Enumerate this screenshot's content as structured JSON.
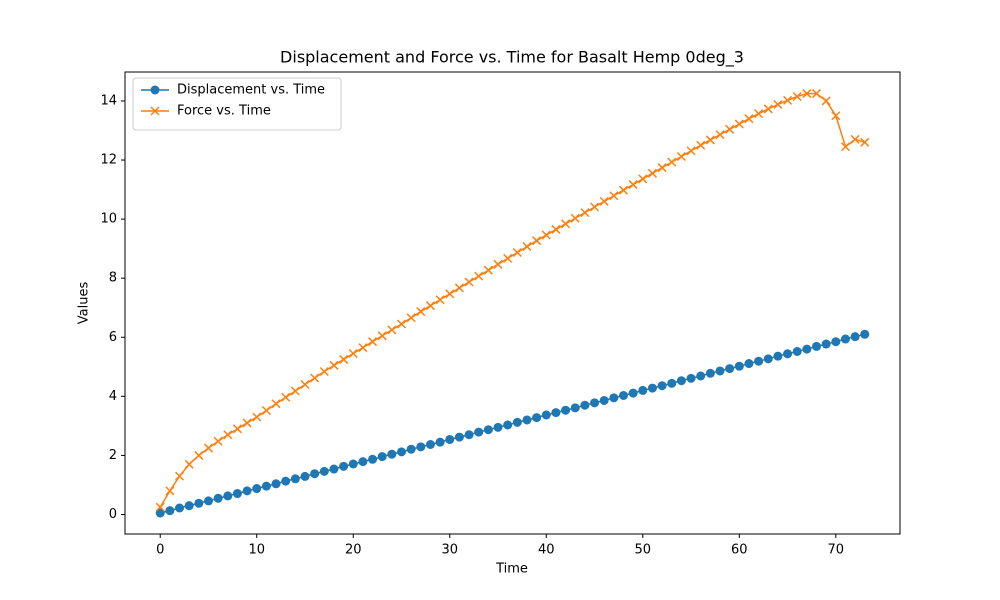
{
  "chart_data": {
    "type": "line",
    "title": "Displacement and Force vs. Time for Basalt Hemp 0deg_3",
    "x_label": "Time",
    "y_label": "Values",
    "x": [
      0,
      1,
      2,
      3,
      4,
      5,
      6,
      7,
      8,
      9,
      10,
      11,
      12,
      13,
      14,
      15,
      16,
      17,
      18,
      19,
      20,
      21,
      22,
      23,
      24,
      25,
      26,
      27,
      28,
      29,
      30,
      31,
      32,
      33,
      34,
      35,
      36,
      37,
      38,
      39,
      40,
      41,
      42,
      43,
      44,
      45,
      46,
      47,
      48,
      49,
      50,
      51,
      52,
      53,
      54,
      55,
      56,
      57,
      58,
      59,
      60,
      61,
      62,
      63,
      64,
      65,
      66,
      67,
      68,
      69,
      70,
      71,
      72,
      73
    ],
    "series": [
      {
        "name": "Displacement vs. Time",
        "color": "#1f77b4",
        "marker": "o",
        "values": [
          0.05,
          0.13,
          0.22,
          0.3,
          0.38,
          0.46,
          0.55,
          0.63,
          0.71,
          0.8,
          0.88,
          0.96,
          1.04,
          1.13,
          1.21,
          1.29,
          1.38,
          1.46,
          1.54,
          1.63,
          1.71,
          1.79,
          1.87,
          1.96,
          2.04,
          2.12,
          2.21,
          2.29,
          2.37,
          2.45,
          2.54,
          2.62,
          2.7,
          2.79,
          2.87,
          2.95,
          3.03,
          3.12,
          3.2,
          3.28,
          3.37,
          3.45,
          3.53,
          3.61,
          3.7,
          3.78,
          3.86,
          3.95,
          4.03,
          4.11,
          4.2,
          4.28,
          4.36,
          4.44,
          4.53,
          4.61,
          4.69,
          4.78,
          4.86,
          4.94,
          5.02,
          5.11,
          5.19,
          5.27,
          5.36,
          5.44,
          5.52,
          5.6,
          5.69,
          5.77,
          5.85,
          5.94,
          6.02,
          6.1
        ]
      },
      {
        "name": "Force vs. Time",
        "color": "#ff7f0e",
        "marker": "x",
        "values": [
          0.25,
          0.8,
          1.3,
          1.7,
          2.0,
          2.25,
          2.48,
          2.7,
          2.9,
          3.1,
          3.3,
          3.52,
          3.75,
          3.97,
          4.18,
          4.4,
          4.62,
          4.84,
          5.05,
          5.25,
          5.45,
          5.65,
          5.85,
          6.05,
          6.25,
          6.45,
          6.66,
          6.87,
          7.07,
          7.27,
          7.47,
          7.67,
          7.87,
          8.07,
          8.27,
          8.47,
          8.67,
          8.87,
          9.07,
          9.27,
          9.46,
          9.65,
          9.84,
          10.03,
          10.22,
          10.41,
          10.6,
          10.79,
          10.98,
          11.17,
          11.36,
          11.55,
          11.74,
          11.93,
          12.12,
          12.31,
          12.5,
          12.68,
          12.86,
          13.04,
          13.22,
          13.4,
          13.57,
          13.73,
          13.88,
          14.02,
          14.15,
          14.25,
          14.25,
          14.0,
          13.5,
          12.45,
          12.7,
          12.6
        ]
      }
    ],
    "xlim": [
      -3.65,
      76.65
    ],
    "xticks": [
      0,
      10,
      20,
      30,
      40,
      50,
      60,
      70
    ],
    "ylim": [
      -0.66,
      14.98
    ],
    "yticks": [
      0,
      2,
      4,
      6,
      8,
      10,
      12,
      14
    ],
    "legend": "upper left",
    "grid": false
  }
}
